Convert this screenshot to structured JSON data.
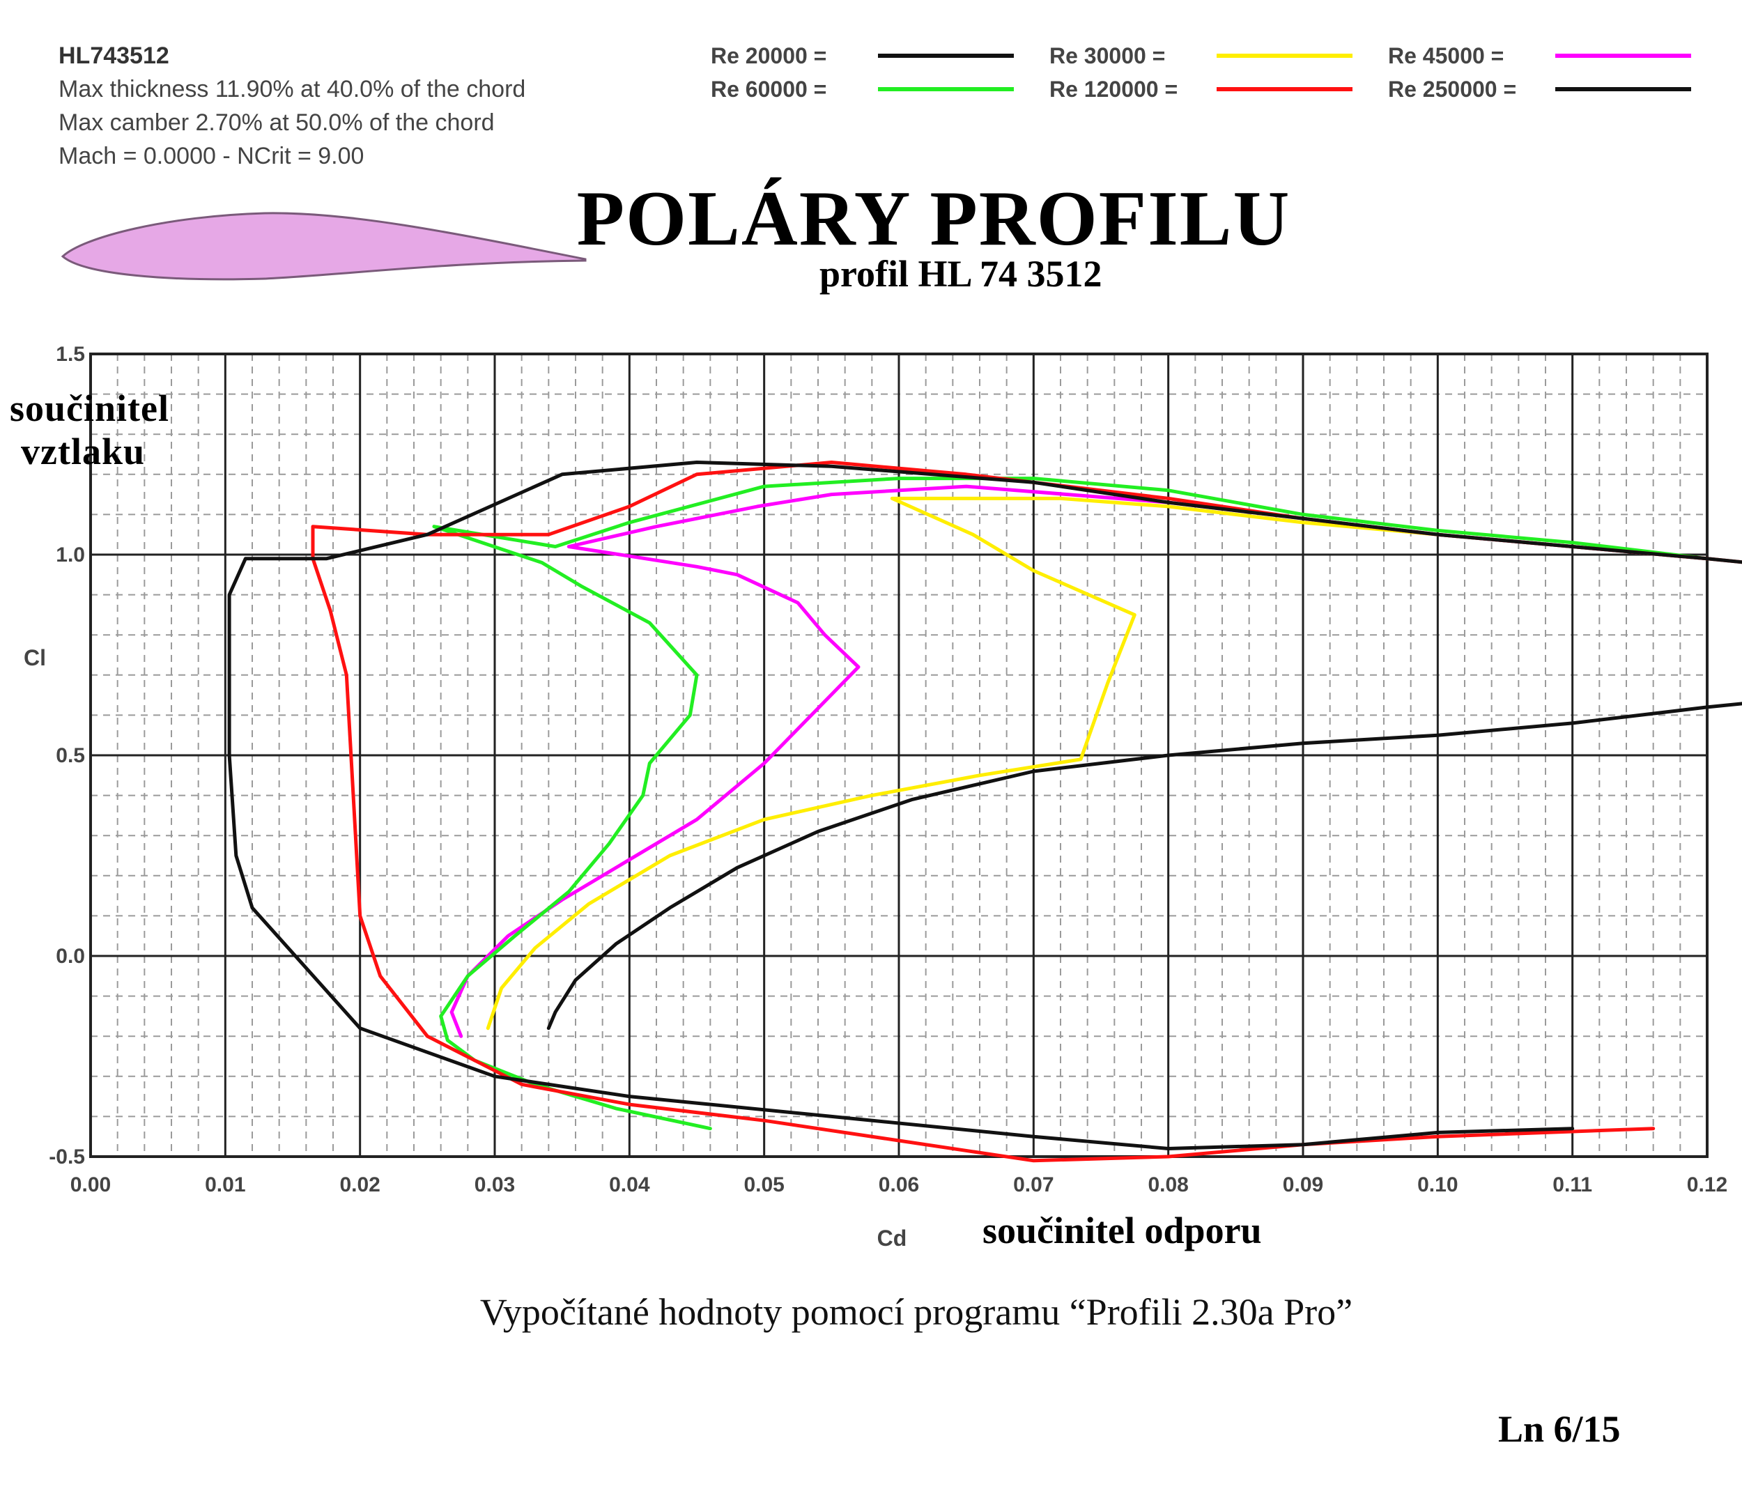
{
  "info": {
    "name": "HL743512",
    "thickness": "Max thickness 11.90% at 40.0% of the chord",
    "camber": "Max camber 2.70% at 50.0% of the chord",
    "mach": "Mach = 0.0000 - NCrit = 9.00"
  },
  "title": "POLÁRY  PROFILU",
  "subtitle": "profil  HL 74 3512",
  "ylabel_cz": [
    "součinitel",
    "vztlaku"
  ],
  "xlabel_cz": "součinitel  odporu",
  "caption": "Vypočítané hodnoty pomocí programu “Profili 2.30a Pro”",
  "page_number": "Ln 6/15",
  "colors": {
    "airfoil_fill": "#e6a8e6",
    "grid_major": "#222222",
    "grid_minor": "#9a9a9a"
  },
  "chart_data": {
    "type": "line",
    "xlabel": "Cd",
    "ylabel": "Cl",
    "xlim": [
      0,
      0.12
    ],
    "ylim": [
      -0.5,
      1.5
    ],
    "xticks": [
      "0.00",
      "0.01",
      "0.02",
      "0.03",
      "0.04",
      "0.05",
      "0.06",
      "0.07",
      "0.08",
      "0.09",
      "0.10",
      "0.11",
      "0.12"
    ],
    "yticks": [
      "-0.5",
      "0.0",
      "0.5",
      "1.0",
      "1.5"
    ],
    "grid": true,
    "legend_position": "top-right",
    "series": [
      {
        "name": "Re 20000 =",
        "color": "#111111",
        "points": [
          [
            0.034,
            -0.18
          ],
          [
            0.0345,
            -0.14
          ],
          [
            0.036,
            -0.06
          ],
          [
            0.039,
            0.03
          ],
          [
            0.043,
            0.12
          ],
          [
            0.048,
            0.22
          ],
          [
            0.054,
            0.31
          ],
          [
            0.061,
            0.39
          ],
          [
            0.07,
            0.46
          ],
          [
            0.08,
            0.5
          ],
          [
            0.09,
            0.53
          ],
          [
            0.1,
            0.55
          ],
          [
            0.11,
            0.58
          ],
          [
            0.12,
            0.62
          ],
          [
            0.123,
            0.63
          ]
        ]
      },
      {
        "name": "Re 30000 =",
        "color": "#ffee00",
        "points": [
          [
            0.0295,
            -0.18
          ],
          [
            0.0305,
            -0.08
          ],
          [
            0.033,
            0.02
          ],
          [
            0.037,
            0.13
          ],
          [
            0.043,
            0.25
          ],
          [
            0.05,
            0.34
          ],
          [
            0.058,
            0.4
          ],
          [
            0.066,
            0.45
          ],
          [
            0.0735,
            0.49
          ],
          [
            0.0755,
            0.68
          ],
          [
            0.0775,
            0.85
          ],
          [
            0.07,
            0.96
          ],
          [
            0.0655,
            1.05
          ],
          [
            0.0595,
            1.14
          ],
          [
            0.072,
            1.14
          ],
          [
            0.08,
            1.12
          ],
          [
            0.09,
            1.08
          ],
          [
            0.1,
            1.05
          ],
          [
            0.11,
            1.02
          ],
          [
            0.12,
            0.99
          ]
        ]
      },
      {
        "name": "Re 45000 =",
        "color": "#ff00ff",
        "points": [
          [
            0.0275,
            -0.2
          ],
          [
            0.0268,
            -0.14
          ],
          [
            0.028,
            -0.05
          ],
          [
            0.031,
            0.05
          ],
          [
            0.035,
            0.14
          ],
          [
            0.04,
            0.24
          ],
          [
            0.045,
            0.34
          ],
          [
            0.05,
            0.48
          ],
          [
            0.057,
            0.72
          ],
          [
            0.0545,
            0.8
          ],
          [
            0.0525,
            0.88
          ],
          [
            0.048,
            0.95
          ],
          [
            0.045,
            0.97
          ],
          [
            0.0355,
            1.02
          ],
          [
            0.042,
            1.07
          ],
          [
            0.0495,
            1.12
          ],
          [
            0.055,
            1.15
          ],
          [
            0.065,
            1.17
          ],
          [
            0.08,
            1.13
          ],
          [
            0.09,
            1.09
          ],
          [
            0.1,
            1.05
          ],
          [
            0.11,
            1.02
          ],
          [
            0.12,
            0.99
          ]
        ]
      },
      {
        "name": "Re 60000 =",
        "color": "#22ee22",
        "points": [
          [
            0.046,
            -0.43
          ],
          [
            0.039,
            -0.38
          ],
          [
            0.033,
            -0.32
          ],
          [
            0.0285,
            -0.26
          ],
          [
            0.0265,
            -0.21
          ],
          [
            0.026,
            -0.15
          ],
          [
            0.028,
            -0.05
          ],
          [
            0.0315,
            0.05
          ],
          [
            0.0355,
            0.16
          ],
          [
            0.0385,
            0.28
          ],
          [
            0.041,
            0.4
          ],
          [
            0.0415,
            0.48
          ],
          [
            0.0445,
            0.6
          ],
          [
            0.045,
            0.7
          ],
          [
            0.0415,
            0.83
          ],
          [
            0.0365,
            0.92
          ],
          [
            0.0335,
            0.98
          ],
          [
            0.0255,
            1.07
          ],
          [
            0.0345,
            1.02
          ],
          [
            0.04,
            1.08
          ],
          [
            0.05,
            1.17
          ],
          [
            0.06,
            1.19
          ],
          [
            0.07,
            1.19
          ],
          [
            0.08,
            1.16
          ],
          [
            0.09,
            1.1
          ],
          [
            0.1,
            1.06
          ],
          [
            0.11,
            1.03
          ],
          [
            0.12,
            0.99
          ]
        ]
      },
      {
        "name": "Re 120000 =",
        "color": "#ff1111",
        "points": [
          [
            0.116,
            -0.43
          ],
          [
            0.1,
            -0.45
          ],
          [
            0.09,
            -0.47
          ],
          [
            0.08,
            -0.5
          ],
          [
            0.07,
            -0.51
          ],
          [
            0.06,
            -0.46
          ],
          [
            0.05,
            -0.41
          ],
          [
            0.04,
            -0.37
          ],
          [
            0.032,
            -0.32
          ],
          [
            0.025,
            -0.2
          ],
          [
            0.0215,
            -0.05
          ],
          [
            0.02,
            0.1
          ],
          [
            0.0195,
            0.4
          ],
          [
            0.019,
            0.7
          ],
          [
            0.0178,
            0.86
          ],
          [
            0.0165,
            0.99
          ],
          [
            0.0165,
            1.07
          ],
          [
            0.025,
            1.05
          ],
          [
            0.034,
            1.05
          ],
          [
            0.04,
            1.12
          ],
          [
            0.045,
            1.2
          ],
          [
            0.055,
            1.23
          ],
          [
            0.065,
            1.2
          ],
          [
            0.08,
            1.14
          ],
          [
            0.09,
            1.09
          ],
          [
            0.1,
            1.05
          ],
          [
            0.11,
            1.02
          ],
          [
            0.12,
            0.99
          ],
          [
            0.123,
            0.98
          ]
        ]
      },
      {
        "name": "Re 250000 =",
        "color": "#111111",
        "points": [
          [
            0.11,
            -0.43
          ],
          [
            0.1,
            -0.44
          ],
          [
            0.09,
            -0.47
          ],
          [
            0.08,
            -0.48
          ],
          [
            0.07,
            -0.45
          ],
          [
            0.055,
            -0.4
          ],
          [
            0.04,
            -0.35
          ],
          [
            0.03,
            -0.3
          ],
          [
            0.02,
            -0.18
          ],
          [
            0.012,
            0.12
          ],
          [
            0.0108,
            0.25
          ],
          [
            0.0103,
            0.5
          ],
          [
            0.0103,
            0.9
          ],
          [
            0.0115,
            0.99
          ],
          [
            0.0175,
            0.99
          ],
          [
            0.025,
            1.05
          ],
          [
            0.035,
            1.2
          ],
          [
            0.045,
            1.23
          ],
          [
            0.055,
            1.22
          ],
          [
            0.07,
            1.18
          ],
          [
            0.08,
            1.13
          ],
          [
            0.09,
            1.09
          ],
          [
            0.1,
            1.05
          ],
          [
            0.11,
            1.02
          ],
          [
            0.12,
            0.99
          ],
          [
            0.123,
            0.98
          ]
        ]
      }
    ]
  }
}
